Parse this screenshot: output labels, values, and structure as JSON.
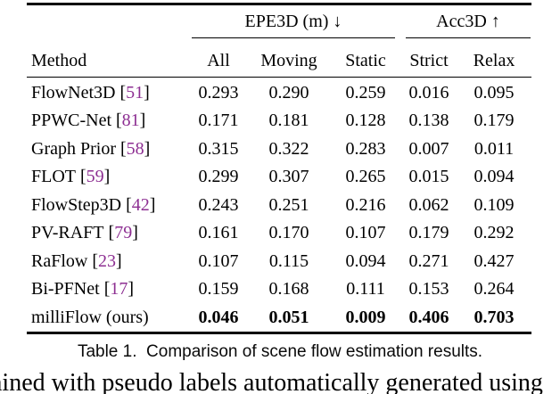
{
  "table": {
    "col_groups": [
      {
        "label": "EPE3D (m) ↓"
      },
      {
        "label": "Acc3D ↑"
      }
    ],
    "columns": [
      "Method",
      "All",
      "Moving",
      "Static",
      "Strict",
      "Relax"
    ],
    "rows": [
      {
        "method": "FlowNet3D",
        "cite": "51",
        "bold": false,
        "values": [
          "0.293",
          "0.290",
          "0.259",
          "0.016",
          "0.095"
        ]
      },
      {
        "method": "PPWC-Net",
        "cite": "81",
        "bold": false,
        "values": [
          "0.171",
          "0.181",
          "0.128",
          "0.138",
          "0.179"
        ]
      },
      {
        "method": "Graph Prior",
        "cite": "58",
        "bold": false,
        "values": [
          "0.315",
          "0.322",
          "0.283",
          "0.007",
          "0.011"
        ]
      },
      {
        "method": "FLOT",
        "cite": "59",
        "bold": false,
        "values": [
          "0.299",
          "0.307",
          "0.265",
          "0.015",
          "0.094"
        ]
      },
      {
        "method": "FlowStep3D",
        "cite": "42",
        "bold": false,
        "values": [
          "0.243",
          "0.251",
          "0.216",
          "0.062",
          "0.109"
        ]
      },
      {
        "method": "PV-RAFT",
        "cite": "79",
        "bold": false,
        "values": [
          "0.161",
          "0.170",
          "0.107",
          "0.179",
          "0.292"
        ]
      },
      {
        "method": "RaFlow",
        "cite": "23",
        "bold": false,
        "values": [
          "0.107",
          "0.115",
          "0.094",
          "0.271",
          "0.427"
        ]
      },
      {
        "method": "Bi-PFNet",
        "cite": "17",
        "bold": false,
        "values": [
          "0.159",
          "0.168",
          "0.111",
          "0.153",
          "0.264"
        ]
      },
      {
        "method": "milliFlow (ours)",
        "cite": null,
        "bold": true,
        "values": [
          "0.046",
          "0.051",
          "0.009",
          "0.406",
          "0.703"
        ]
      }
    ],
    "caption": "Table 1.  Comparison of scene flow estimation results."
  },
  "body_text_fragment": "ained with pseudo labels automatically generated using",
  "colors": {
    "citation_purple": "#8d2f92",
    "text": "#000000",
    "background": "#ffffff"
  }
}
